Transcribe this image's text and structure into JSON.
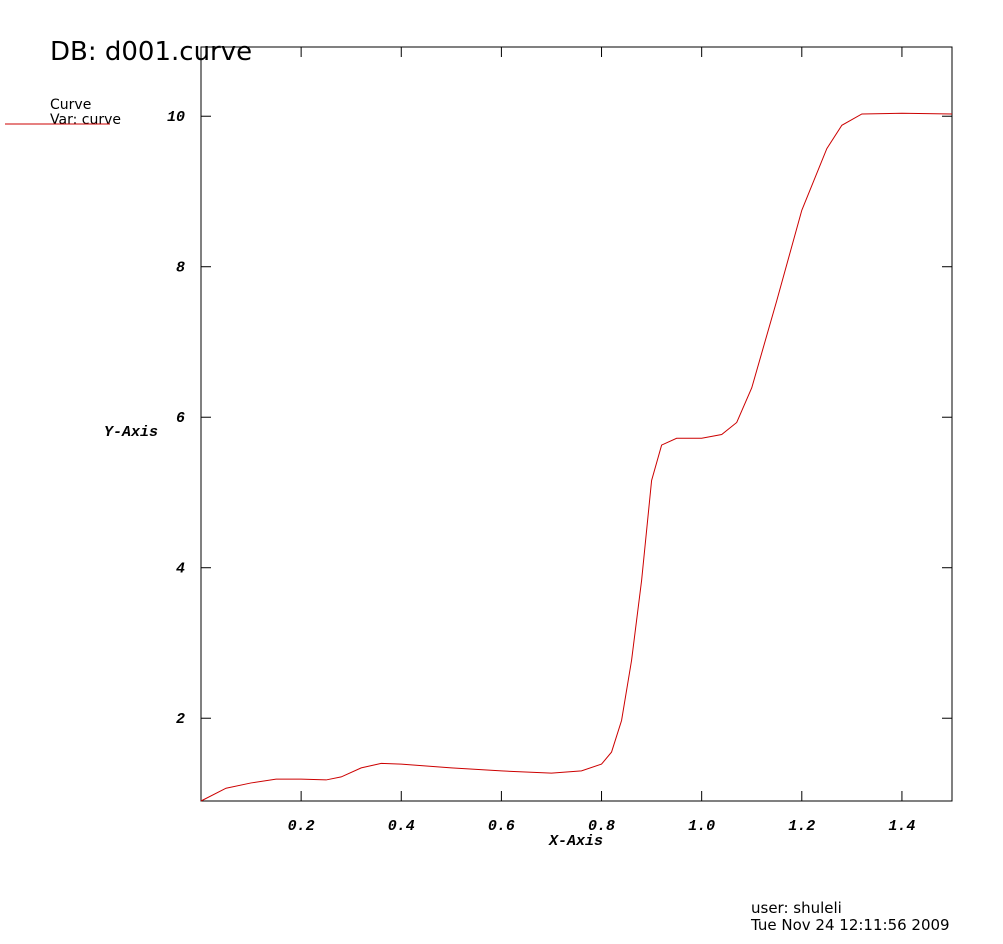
{
  "chart_data": {
    "type": "line",
    "title": "DB: d001.curve",
    "legend_title": "Curve",
    "legend_subtitle": "Var: curve",
    "x_label": "X-Axis",
    "y_label": "Y-Axis",
    "footer_user": "user: shuleli",
    "footer_date": "Tue Nov 24 12:11:56 2009",
    "xlim": [
      0,
      1.5
    ],
    "ylim": [
      0.9,
      10.92
    ],
    "xticks": [
      {
        "value": 0.2,
        "label": "0.2"
      },
      {
        "value": 0.4,
        "label": "0.4"
      },
      {
        "value": 0.6,
        "label": "0.6"
      },
      {
        "value": 0.8,
        "label": "0.8"
      },
      {
        "value": 1.0,
        "label": "1.0"
      },
      {
        "value": 1.2,
        "label": "1.2"
      },
      {
        "value": 1.4,
        "label": "1.4"
      }
    ],
    "yticks": [
      2,
      4,
      6,
      8,
      10
    ],
    "series": [
      {
        "color": "#cc0000",
        "x": [
          0,
          0.05,
          0.1,
          0.15,
          0.2,
          0.25,
          0.28,
          0.32,
          0.36,
          0.4,
          0.5,
          0.6,
          0.7,
          0.76,
          0.8,
          0.82,
          0.84,
          0.86,
          0.88,
          0.9,
          0.92,
          0.95,
          1.0,
          1.04,
          1.07,
          1.1,
          1.15,
          1.2,
          1.25,
          1.28,
          1.32,
          1.4,
          1.5
        ],
        "values": [
          0.9,
          1.07,
          1.14,
          1.19,
          1.19,
          1.18,
          1.22,
          1.34,
          1.4,
          1.39,
          1.34,
          1.3,
          1.27,
          1.3,
          1.39,
          1.55,
          1.97,
          2.77,
          3.83,
          5.16,
          5.63,
          5.72,
          5.72,
          5.77,
          5.93,
          6.39,
          7.55,
          8.75,
          9.57,
          9.88,
          10.03,
          10.04,
          10.03
        ]
      }
    ]
  }
}
